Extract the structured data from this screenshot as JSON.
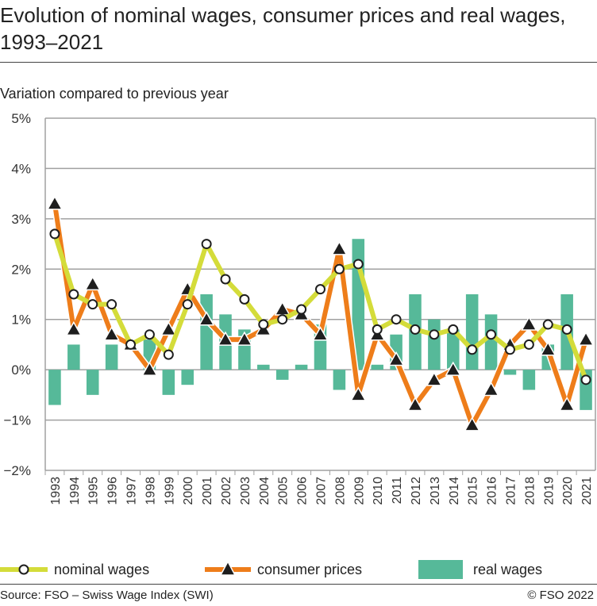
{
  "chart_data": {
    "type": "bar+line",
    "title": "Evolution of nominal wages, consumer prices and real wages, 1993–2021",
    "subtitle": "Variation compared to previous year",
    "categories": [
      "1993",
      "1994",
      "1995",
      "1996",
      "1997",
      "1998",
      "1999",
      "2000",
      "2001",
      "2002",
      "2003",
      "2004",
      "2005",
      "2006",
      "2007",
      "2008",
      "2009",
      "2010",
      "2011",
      "2012",
      "2013",
      "2014",
      "2015",
      "2016",
      "2017",
      "2018",
      "2019",
      "2020",
      "2021"
    ],
    "ylim": [
      -2,
      5
    ],
    "yticks": [
      "−2%",
      "−1%",
      "0%",
      "1%",
      "2%",
      "3%",
      "4%",
      "5%"
    ],
    "grid": true,
    "legend_position": "bottom",
    "series": [
      {
        "name": "nominal wages",
        "type": "line",
        "color": "#d4dc3a",
        "marker": "circle",
        "values": [
          2.7,
          1.5,
          1.3,
          1.3,
          0.5,
          0.7,
          0.3,
          1.3,
          2.5,
          1.8,
          1.4,
          0.9,
          1.0,
          1.2,
          1.6,
          2.0,
          2.1,
          0.8,
          1.0,
          0.8,
          0.7,
          0.8,
          0.4,
          0.7,
          0.4,
          0.5,
          0.9,
          0.8,
          -0.2
        ]
      },
      {
        "name": "consumer prices",
        "type": "line",
        "color": "#ee7d1a",
        "marker": "triangle",
        "values": [
          3.3,
          0.8,
          1.7,
          0.7,
          0.5,
          0.0,
          0.8,
          1.6,
          1.0,
          0.6,
          0.6,
          0.8,
          1.2,
          1.1,
          0.7,
          2.4,
          -0.5,
          0.7,
          0.2,
          -0.7,
          -0.2,
          0.0,
          -1.1,
          -0.4,
          0.5,
          0.9,
          0.4,
          -0.7,
          0.6
        ]
      },
      {
        "name": "real wages",
        "type": "bar",
        "color": "#56b999",
        "values": [
          -0.7,
          0.5,
          -0.5,
          0.5,
          0.0,
          0.6,
          -0.5,
          -0.3,
          1.5,
          1.1,
          0.8,
          0.1,
          -0.2,
          0.1,
          0.9,
          -0.4,
          2.6,
          0.1,
          0.7,
          1.5,
          1.0,
          0.8,
          1.5,
          1.1,
          -0.1,
          -0.4,
          0.5,
          1.5,
          -0.8
        ]
      }
    ]
  },
  "footer": {
    "source": "Source: FSO – Swiss Wage Index (SWI)",
    "copyright": "© FSO 2022"
  }
}
